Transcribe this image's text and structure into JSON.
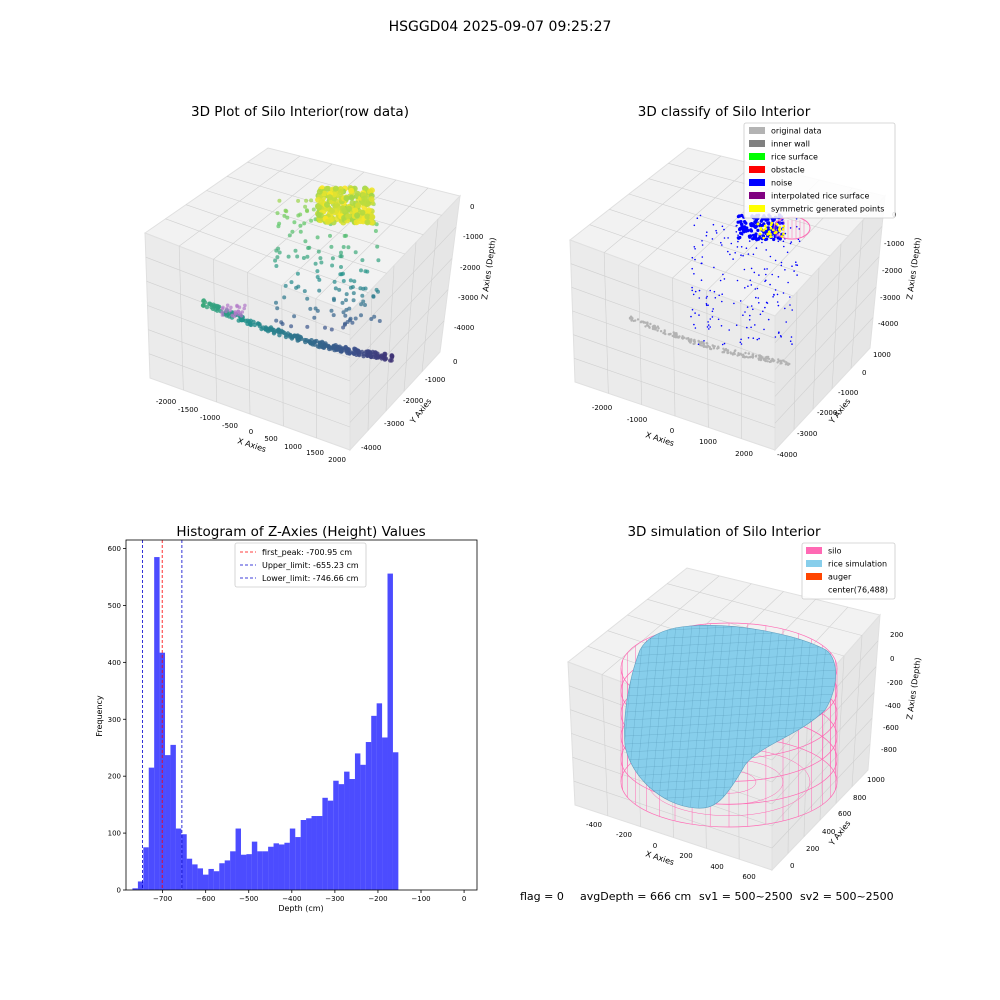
{
  "suptitle": "HSGGD04 2025-09-07 09:25:27",
  "footer": {
    "flag": "flag = 0",
    "avg_depth": "avgDepth = 666 cm",
    "sv1": "sv1 = 500~2500",
    "sv2": "sv2 = 500~2500"
  },
  "chart_data": [
    {
      "type": "scatter",
      "panel": "3d-raw",
      "title": "3D Plot of Silo Interior(row data)",
      "xlabel": "X Axies",
      "ylabel": "Y Axies",
      "zlabel": "Z Axies (Depth)",
      "x_ticks": [
        "-2000",
        "-1500",
        "-1000",
        "-500",
        "0",
        "500",
        "1000",
        "1500",
        "2000"
      ],
      "y_ticks": [
        "0",
        "-1000",
        "-2000",
        "-3000",
        "-4000"
      ],
      "z_ticks": [
        "0",
        "-1000",
        "-2000",
        "-3000",
        "-4000"
      ],
      "grid": true
    },
    {
      "type": "scatter",
      "panel": "3d-classify",
      "title": "3D classify of Silo Interior",
      "xlabel": "X Axies",
      "ylabel": "Y Axies",
      "zlabel": "Z Axies (Depth)",
      "x_ticks": [
        "-2000",
        "-1000",
        "0",
        "1000",
        "2000"
      ],
      "y_ticks": [
        "1000",
        "0",
        "-1000",
        "-2000",
        "-3000",
        "-4000"
      ],
      "z_ticks": [
        "0",
        "-1000",
        "-2000",
        "-3000",
        "-4000"
      ],
      "legend": [
        {
          "name": "original data",
          "color": "#b3b3b3"
        },
        {
          "name": "inner wall",
          "color": "#808080"
        },
        {
          "name": "rice surface",
          "color": "#00ff00"
        },
        {
          "name": "obstacle",
          "color": "#ff0000"
        },
        {
          "name": "noise",
          "color": "#0000ff"
        },
        {
          "name": "interpolated rice surface",
          "color": "#800080"
        },
        {
          "name": "symmetric generated points",
          "color": "#ffff00"
        }
      ],
      "legend_position": "top-right",
      "grid": true
    },
    {
      "type": "bar",
      "panel": "histogram",
      "title": "Histogram of Z-Axies (Height) Values",
      "xlabel": "Depth (cm)",
      "ylabel": "Frequency",
      "xlim": [
        -785,
        30
      ],
      "ylim": [
        0,
        615
      ],
      "x_ticks": [
        -700,
        -600,
        -500,
        -400,
        -300,
        -200,
        -100,
        0
      ],
      "x_tick_labels": [
        "−700",
        "−600",
        "−500",
        "−400",
        "−300",
        "−200",
        "−100",
        "0"
      ],
      "y_ticks": [
        0,
        100,
        200,
        300,
        400,
        500,
        600
      ],
      "bin_start": -770,
      "bin_width": 12.6,
      "values": [
        3,
        15,
        75,
        215,
        585,
        417,
        237,
        255,
        108,
        98,
        55,
        45,
        38,
        27,
        37,
        33,
        47,
        52,
        68,
        108,
        62,
        63,
        85,
        68,
        68,
        76,
        82,
        80,
        83,
        108,
        93,
        123,
        126,
        130,
        130,
        162,
        157,
        192,
        186,
        208,
        195,
        240,
        220,
        260,
        306,
        328,
        268,
        556,
        242
      ],
      "bar_color": "#0000ff",
      "lines": [
        {
          "label": "first_peak: -700.95 cm",
          "x": -700.95,
          "color": "#ff0000"
        },
        {
          "label": "Upper_limit: -655.23 cm",
          "x": -655.23,
          "color": "#0000cc"
        },
        {
          "label": "Lower_limit: -746.66 cm",
          "x": -746.66,
          "color": "#0000cc"
        }
      ],
      "legend_position": "top-center"
    },
    {
      "type": "surface",
      "panel": "3d-simulation",
      "title": "3D simulation of Silo Interior",
      "xlabel": "X Axies",
      "ylabel": "Y Axies",
      "zlabel": "Z Axies (Depth)",
      "x_ticks": [
        "-400",
        "-200",
        "0",
        "200",
        "400",
        "600"
      ],
      "y_ticks": [
        "0",
        "200",
        "400",
        "600",
        "800",
        "1000"
      ],
      "z_ticks": [
        "200",
        "0",
        "-200",
        "-400",
        "-600",
        "-800"
      ],
      "legend": [
        {
          "name": "silo",
          "color": "#ff69b4"
        },
        {
          "name": "rice simulation",
          "color": "#87ceeb"
        },
        {
          "name": "auger",
          "color": "#ff4500"
        },
        {
          "name": "center(76,488)",
          "color": ""
        }
      ],
      "legend_position": "top-right"
    }
  ]
}
